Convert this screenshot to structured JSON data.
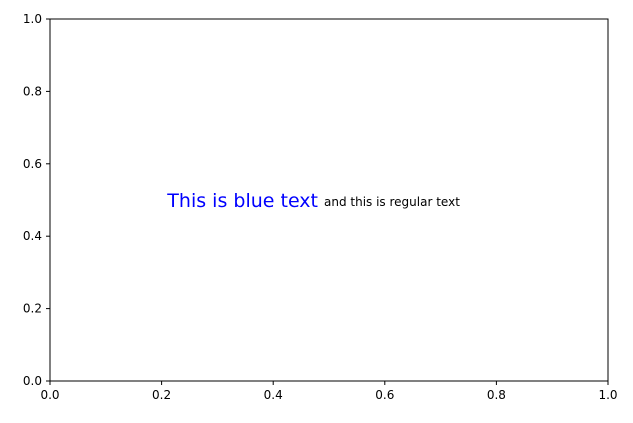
{
  "chart_data": {
    "type": "scatter",
    "title": "",
    "xlabel": "",
    "ylabel": "",
    "xlim": [
      0.0,
      1.0
    ],
    "ylim": [
      0.0,
      1.0
    ],
    "x_ticks": [
      "0.0",
      "0.2",
      "0.4",
      "0.6",
      "0.8",
      "1.0"
    ],
    "y_ticks": [
      "0.0",
      "0.2",
      "0.4",
      "0.6",
      "0.8",
      "1.0"
    ],
    "grid": false,
    "legend": "none",
    "series": [],
    "annotations": [
      {
        "text": "This is blue text",
        "x": 0.5,
        "y": 0.5,
        "anchor": "end",
        "color": "#0000ff",
        "size": "large"
      },
      {
        "text": "and this is regular text",
        "x": 0.5,
        "y": 0.5,
        "anchor": "start",
        "color": "#000000",
        "size": "normal"
      }
    ]
  }
}
